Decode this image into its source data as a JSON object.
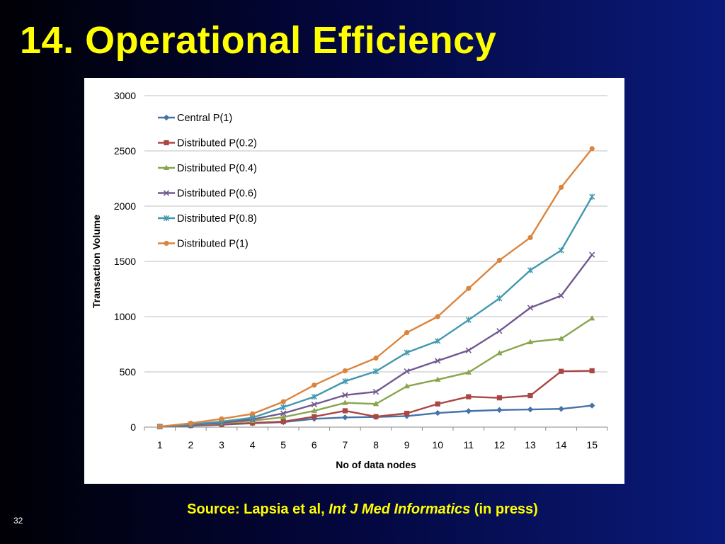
{
  "slide": {
    "title": "14. Operational Efficiency",
    "source_prefix": "Source: Lapsia et al, ",
    "source_journal": "Int J Med Informatics",
    "source_suffix": " (in press)",
    "page_number": "32"
  },
  "chart_data": {
    "type": "line",
    "title": "",
    "xlabel": "No of data nodes",
    "ylabel": "Transaction Volume",
    "x": [
      1,
      2,
      3,
      4,
      5,
      6,
      7,
      8,
      9,
      10,
      11,
      12,
      13,
      14,
      15
    ],
    "ylim": [
      0,
      3000
    ],
    "yticks": [
      0,
      500,
      1000,
      1500,
      2000,
      2500,
      3000
    ],
    "grid": true,
    "legend_position": "top-left",
    "series": [
      {
        "name": "Central P(1)",
        "color": "#4572a7",
        "marker": "diamond",
        "values": [
          5,
          12,
          22,
          35,
          45,
          75,
          88,
          92,
          100,
          128,
          145,
          155,
          160,
          165,
          195
        ]
      },
      {
        "name": "Distributed P(0.2)",
        "color": "#aa4643",
        "marker": "square",
        "values": [
          5,
          15,
          25,
          38,
          50,
          95,
          148,
          95,
          125,
          210,
          275,
          265,
          285,
          505,
          510
        ]
      },
      {
        "name": "Distributed P(0.4)",
        "color": "#89a54e",
        "marker": "triangle",
        "values": [
          5,
          18,
          35,
          58,
          90,
          148,
          220,
          210,
          370,
          430,
          495,
          670,
          770,
          800,
          985
        ]
      },
      {
        "name": "Distributed P(0.6)",
        "color": "#71588f",
        "marker": "x",
        "values": [
          5,
          20,
          40,
          70,
          125,
          205,
          290,
          320,
          505,
          600,
          695,
          870,
          1080,
          1190,
          1560
        ]
      },
      {
        "name": "Distributed P(0.8)",
        "color": "#4198af",
        "marker": "star",
        "values": [
          5,
          25,
          50,
          85,
          180,
          275,
          415,
          505,
          675,
          780,
          970,
          1165,
          1420,
          1600,
          2085
        ]
      },
      {
        "name": "Distributed P(1)",
        "color": "#db843d",
        "marker": "circle",
        "values": [
          5,
          35,
          75,
          120,
          230,
          380,
          510,
          625,
          855,
          1000,
          1255,
          1510,
          1715,
          2170,
          2520
        ]
      }
    ]
  }
}
